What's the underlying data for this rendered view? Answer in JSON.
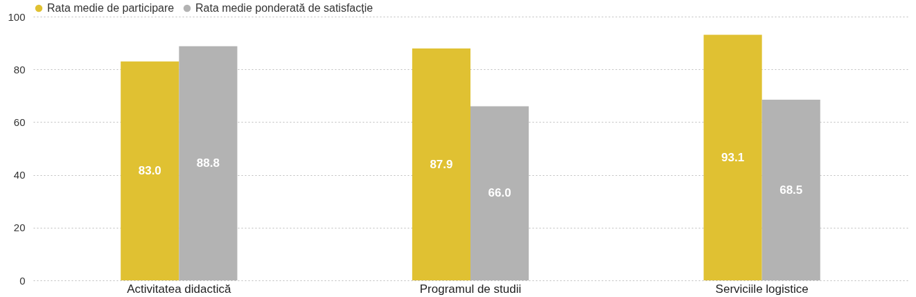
{
  "chart_data": {
    "type": "bar",
    "categories": [
      "Activitatea didactică",
      "Programul de studii",
      "Serviciile logistice"
    ],
    "series": [
      {
        "name": "Rata medie de participare",
        "color": "#e0c132",
        "values": [
          83.0,
          87.9,
          93.1
        ],
        "value_labels": [
          "83.0",
          "87.9",
          "93.1"
        ]
      },
      {
        "name": "Rata medie ponderată de satisfacție",
        "color": "#b3b3b3",
        "values": [
          88.8,
          66.0,
          68.5
        ],
        "value_labels": [
          "88.8",
          "66.0",
          "68.5"
        ]
      }
    ],
    "ylim": [
      0,
      100
    ],
    "yticks": [
      0,
      20,
      40,
      60,
      80,
      100
    ],
    "grid": "y",
    "legend": "top left"
  }
}
